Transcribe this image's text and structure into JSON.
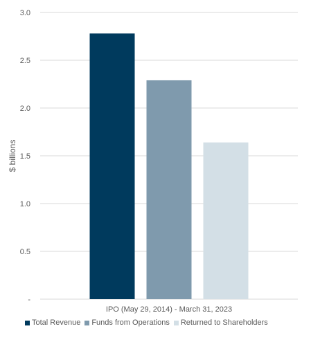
{
  "chart_data": {
    "type": "bar",
    "categories": [
      "IPO (May 29, 2014) - March 31, 2023"
    ],
    "series": [
      {
        "name": "Total Revenue",
        "values": [
          2.78
        ],
        "color": "#003a5d"
      },
      {
        "name": "Funds from Operations",
        "values": [
          2.29
        ],
        "color": "#7f9aad"
      },
      {
        "name": "Returned to Shareholders",
        "values": [
          1.64
        ],
        "color": "#d3dfe6"
      }
    ],
    "title": "",
    "xlabel": "",
    "ylabel": "$ billions",
    "ylim": [
      0,
      3.0
    ],
    "yticks": [
      0,
      0.5,
      1.0,
      1.5,
      2.0,
      2.5,
      3.0
    ],
    "ytick_labels": [
      "-",
      "0.5",
      "1.0",
      "1.5",
      "2.0",
      "2.5",
      "3.0"
    ],
    "grid": true,
    "legend_position": "bottom"
  }
}
